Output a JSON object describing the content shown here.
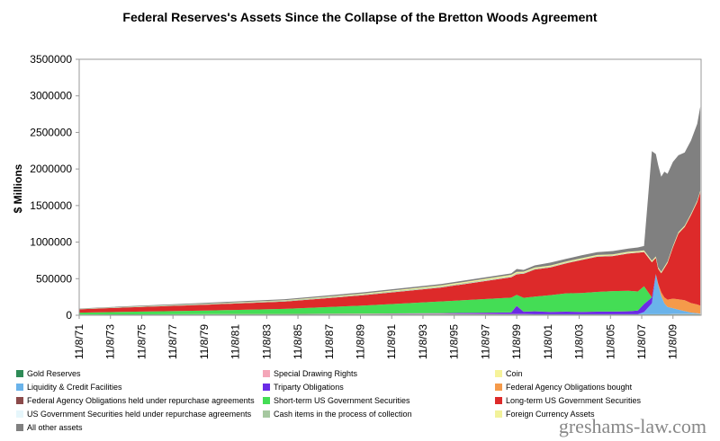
{
  "watermark": "greshams-law.com",
  "chart_data": {
    "type": "area",
    "stacked": true,
    "title": "Federal Reserves's Assets Since the Collapse of the Bretton Woods Agreement",
    "xlabel": "",
    "ylabel": "$ Millions",
    "ylim": [
      0,
      3500000
    ],
    "yticks": [
      0,
      500000,
      1000000,
      1500000,
      2000000,
      2500000,
      3000000,
      3500000
    ],
    "ytick_labels": [
      "0",
      "500000",
      "1000000",
      "1500000",
      "2000000",
      "2500000",
      "3000000",
      "3500000"
    ],
    "xlim": [
      1971.85,
      2011.65
    ],
    "xticks": [
      1971.85,
      1973.85,
      1975.85,
      1977.85,
      1979.85,
      1981.85,
      1983.85,
      1985.85,
      1987.85,
      1989.85,
      1991.85,
      1993.85,
      1995.85,
      1997.85,
      1999.85,
      2001.85,
      2003.85,
      2005.85,
      2007.85,
      2009.85
    ],
    "xtick_labels": [
      "11/8/71",
      "11/8/73",
      "11/8/75",
      "11/8/77",
      "11/8/79",
      "11/8/81",
      "11/8/83",
      "11/8/85",
      "11/8/87",
      "11/8/89",
      "11/8/91",
      "11/8/93",
      "11/8/95",
      "11/8/97",
      "11/8/99",
      "11/8/01",
      "11/8/03",
      "11/8/05",
      "11/8/07",
      "11/8/09"
    ],
    "grid": false,
    "legend_position": "bottom",
    "x": [
      1971.85,
      1975,
      1980,
      1985,
      1990,
      1995,
      1999.5,
      1999.85,
      2000.3,
      2001,
      2002,
      2003,
      2004,
      2005,
      2006,
      2007,
      2007.6,
      2008.0,
      2008.5,
      2008.75,
      2008.9,
      2009.1,
      2009.3,
      2009.5,
      2009.85,
      2010.2,
      2010.6,
      2011.0,
      2011.4,
      2011.6
    ],
    "series": [
      {
        "name": "Gold Reserves",
        "color": "#2e8b57",
        "values": [
          10000,
          11000,
          11000,
          11000,
          11000,
          11000,
          11000,
          11000,
          11000,
          11000,
          11000,
          11000,
          11000,
          11000,
          11000,
          11000,
          11000,
          11000,
          11000,
          11000,
          11000,
          11000,
          11000,
          11000,
          11000,
          11000,
          11000,
          11000,
          11000,
          11000
        ]
      },
      {
        "name": "Special Drawing Rights",
        "color": "#f4a6b8",
        "values": [
          400,
          1200,
          3000,
          5000,
          8000,
          9000,
          6000,
          6000,
          6000,
          2200,
          2200,
          2200,
          2200,
          2200,
          2200,
          2200,
          2200,
          2200,
          2200,
          2200,
          2200,
          2200,
          2200,
          2200,
          5200,
          5200,
          5200,
          5200,
          5200,
          5200
        ]
      },
      {
        "name": "Coin",
        "color": "#f6f39a",
        "values": [
          300,
          400,
          400,
          500,
          500,
          500,
          600,
          600,
          600,
          700,
          700,
          700,
          700,
          700,
          700,
          700,
          700,
          700,
          700,
          700,
          700,
          700,
          700,
          700,
          700,
          700,
          700,
          700,
          700,
          700
        ]
      },
      {
        "name": "Liquidity & Credit Facilities",
        "color": "#6ab3ea",
        "values": [
          0,
          0,
          0,
          0,
          0,
          0,
          0,
          0,
          0,
          0,
          0,
          0,
          0,
          0,
          0,
          0,
          0,
          30000,
          150000,
          550000,
          400000,
          250000,
          150000,
          100000,
          80000,
          60000,
          40000,
          20000,
          10000,
          5000
        ]
      },
      {
        "name": "Triparty Obligations",
        "color": "#6a2be6",
        "values": [
          0,
          0,
          0,
          0,
          2000,
          8000,
          20000,
          110000,
          30000,
          40000,
          30000,
          35000,
          30000,
          35000,
          35000,
          40000,
          50000,
          110000,
          80000,
          0,
          0,
          0,
          0,
          0,
          0,
          0,
          0,
          0,
          0,
          0
        ]
      },
      {
        "name": "Federal Agency Obligations bought",
        "color": "#f59a4a",
        "values": [
          0,
          0,
          0,
          0,
          0,
          0,
          0,
          0,
          0,
          0,
          0,
          0,
          0,
          0,
          0,
          0,
          0,
          0,
          0,
          0,
          20000,
          50000,
          80000,
          100000,
          130000,
          140000,
          150000,
          130000,
          120000,
          110000
        ]
      },
      {
        "name": "Federal Agency Obligations held under repurchase agreements",
        "color": "#8b4a4a",
        "values": [
          0,
          0,
          1000,
          1000,
          1000,
          1000,
          3000,
          3000,
          1000,
          1000,
          1000,
          1000,
          1000,
          1000,
          1000,
          1000,
          1000,
          1000,
          1000,
          0,
          0,
          0,
          0,
          0,
          0,
          0,
          0,
          0,
          0,
          0
        ]
      },
      {
        "name": "Short-term US Government Securities",
        "color": "#44dd55",
        "values": [
          25000,
          35000,
          50000,
          70000,
          110000,
          160000,
          200000,
          150000,
          190000,
          200000,
          230000,
          250000,
          260000,
          270000,
          280000,
          280000,
          260000,
          240000,
          0,
          0,
          0,
          0,
          0,
          0,
          0,
          0,
          0,
          0,
          0,
          0
        ]
      },
      {
        "name": "Long-term US Government Securities",
        "color": "#dd2a2a",
        "values": [
          45000,
          60000,
          80000,
          100000,
          140000,
          190000,
          280000,
          280000,
          330000,
          370000,
          380000,
          410000,
          450000,
          480000,
          480000,
          510000,
          530000,
          470000,
          480000,
          220000,
          200000,
          260000,
          400000,
          500000,
          700000,
          900000,
          1000000,
          1200000,
          1400000,
          1550000
        ]
      },
      {
        "name": "US Government Securities held under repurchase agreements",
        "color": "#e6f6fb",
        "values": [
          0,
          0,
          1000,
          2000,
          3000,
          3000,
          4000,
          4000,
          2000,
          2000,
          2000,
          2000,
          2000,
          2000,
          2000,
          2000,
          2000,
          2000,
          0,
          0,
          0,
          0,
          0,
          0,
          0,
          0,
          0,
          0,
          0,
          0
        ]
      },
      {
        "name": "Cash items in the process of collection",
        "color": "#a6c8a0",
        "values": [
          5000,
          6000,
          8000,
          10000,
          10000,
          10000,
          10000,
          10000,
          10000,
          10000,
          8000,
          8000,
          8000,
          7000,
          6000,
          6000,
          5000,
          5000,
          5000,
          5000,
          5000,
          5000,
          5000,
          5000,
          5000,
          5000,
          5000,
          5000,
          5000,
          5000
        ]
      },
      {
        "name": "Foreign Currency Assets",
        "color": "#f2f29a",
        "values": [
          2000,
          3000,
          4000,
          5000,
          10000,
          15000,
          18000,
          18000,
          15000,
          15000,
          15000,
          15000,
          15000,
          15000,
          15000,
          15000,
          15000,
          15000,
          15000,
          15000,
          15000,
          15000,
          15000,
          15000,
          15000,
          15000,
          15000,
          15000,
          15000,
          15000
        ]
      },
      {
        "name": "All other assets",
        "color": "#808080",
        "values": [
          5000,
          8000,
          12000,
          15000,
          18000,
          20000,
          20000,
          40000,
          25000,
          30000,
          40000,
          35000,
          40000,
          40000,
          45000,
          45000,
          50000,
          60000,
          1500000,
          1400000,
          1400000,
          1300000,
          1300000,
          1200000,
          1150000,
          1050000,
          1000000,
          1000000,
          1050000,
          1150000
        ]
      }
    ]
  }
}
